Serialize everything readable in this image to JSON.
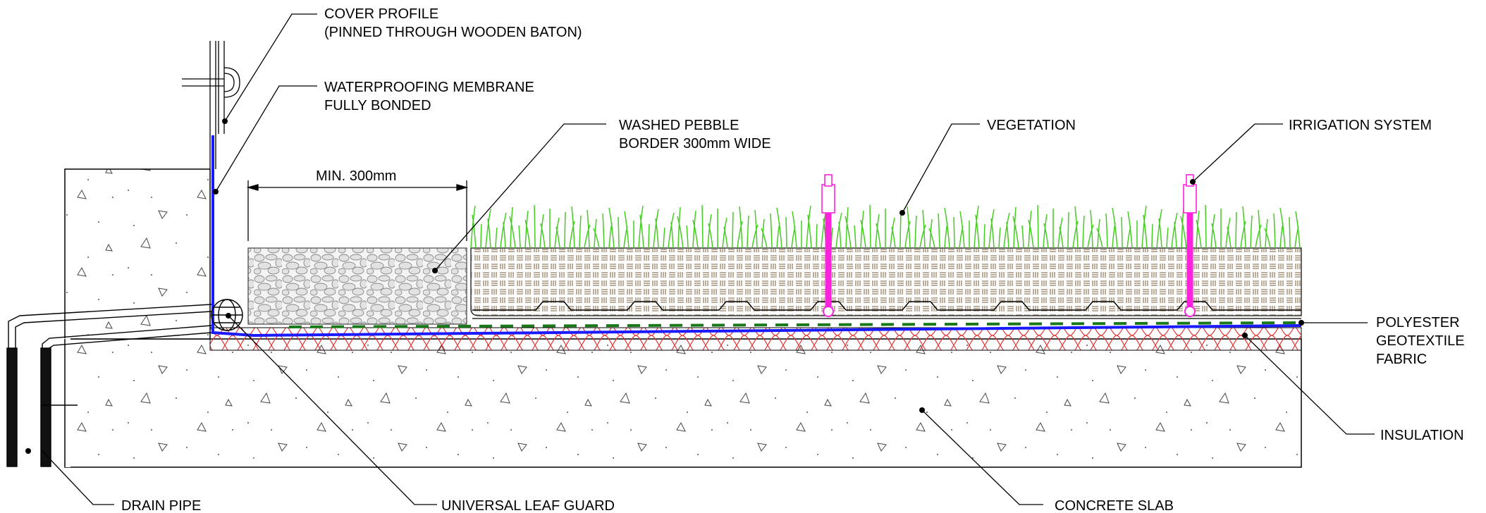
{
  "labels": {
    "cover_profile": {
      "line1": "COVER PROFILE",
      "line2": "(PINNED THROUGH WOODEN BATON)"
    },
    "waterproofing": {
      "line1": "WATERPROOFING MEMBRANE",
      "line2": "FULLY BONDED"
    },
    "pebble": {
      "line1": "WASHED PEBBLE",
      "line2": "BORDER 300mm WIDE"
    },
    "vegetation": "VEGETATION",
    "irrigation": "IRRIGATION SYSTEM",
    "geotextile": {
      "line1": "POLYESTER",
      "line2": "GEOTEXTILE",
      "line3": "FABRIC"
    },
    "insulation": "INSULATION",
    "concrete_slab": "CONCRETE SLAB",
    "leaf_guard": "UNIVERSAL LEAF GUARD",
    "drain_pipe": "DRAIN PIPE",
    "dimension": "MIN. 300mm"
  },
  "colors": {
    "membrane": "#1a1aff",
    "grass": "#44cc22",
    "insulation": "#e33333",
    "geotextile_dash": "#1a7a1a",
    "irrigation": "#ff22dd",
    "soil_pattern": "#a08c70",
    "outline": "#000000"
  }
}
